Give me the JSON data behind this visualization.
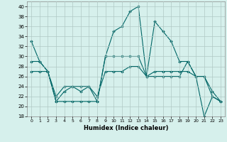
{
  "title": "",
  "xlabel": "Humidex (Indice chaleur)",
  "ylabel": "",
  "background_color": "#d6f0ec",
  "grid_color": "#b0c8c4",
  "line_color": "#006666",
  "xlim": [
    -0.5,
    23.5
  ],
  "ylim": [
    18,
    41
  ],
  "yticks": [
    18,
    20,
    22,
    24,
    26,
    28,
    30,
    32,
    34,
    36,
    38,
    40
  ],
  "xticks": [
    0,
    1,
    2,
    3,
    4,
    5,
    6,
    7,
    8,
    9,
    10,
    11,
    12,
    13,
    14,
    15,
    16,
    17,
    18,
    19,
    20,
    21,
    22,
    23
  ],
  "series": [
    [
      33,
      29,
      27,
      21,
      23,
      24,
      23,
      24,
      21,
      30,
      35,
      36,
      39,
      40,
      26,
      37,
      35,
      33,
      29,
      29,
      26,
      18,
      22,
      21
    ],
    [
      29,
      29,
      27,
      21,
      21,
      21,
      21,
      21,
      21,
      30,
      30,
      30,
      30,
      30,
      26,
      26,
      26,
      26,
      26,
      29,
      26,
      26,
      23,
      21
    ],
    [
      27,
      27,
      27,
      22,
      24,
      24,
      24,
      24,
      22,
      27,
      27,
      27,
      28,
      28,
      26,
      27,
      27,
      27,
      27,
      27,
      26,
      26,
      22,
      21
    ]
  ]
}
